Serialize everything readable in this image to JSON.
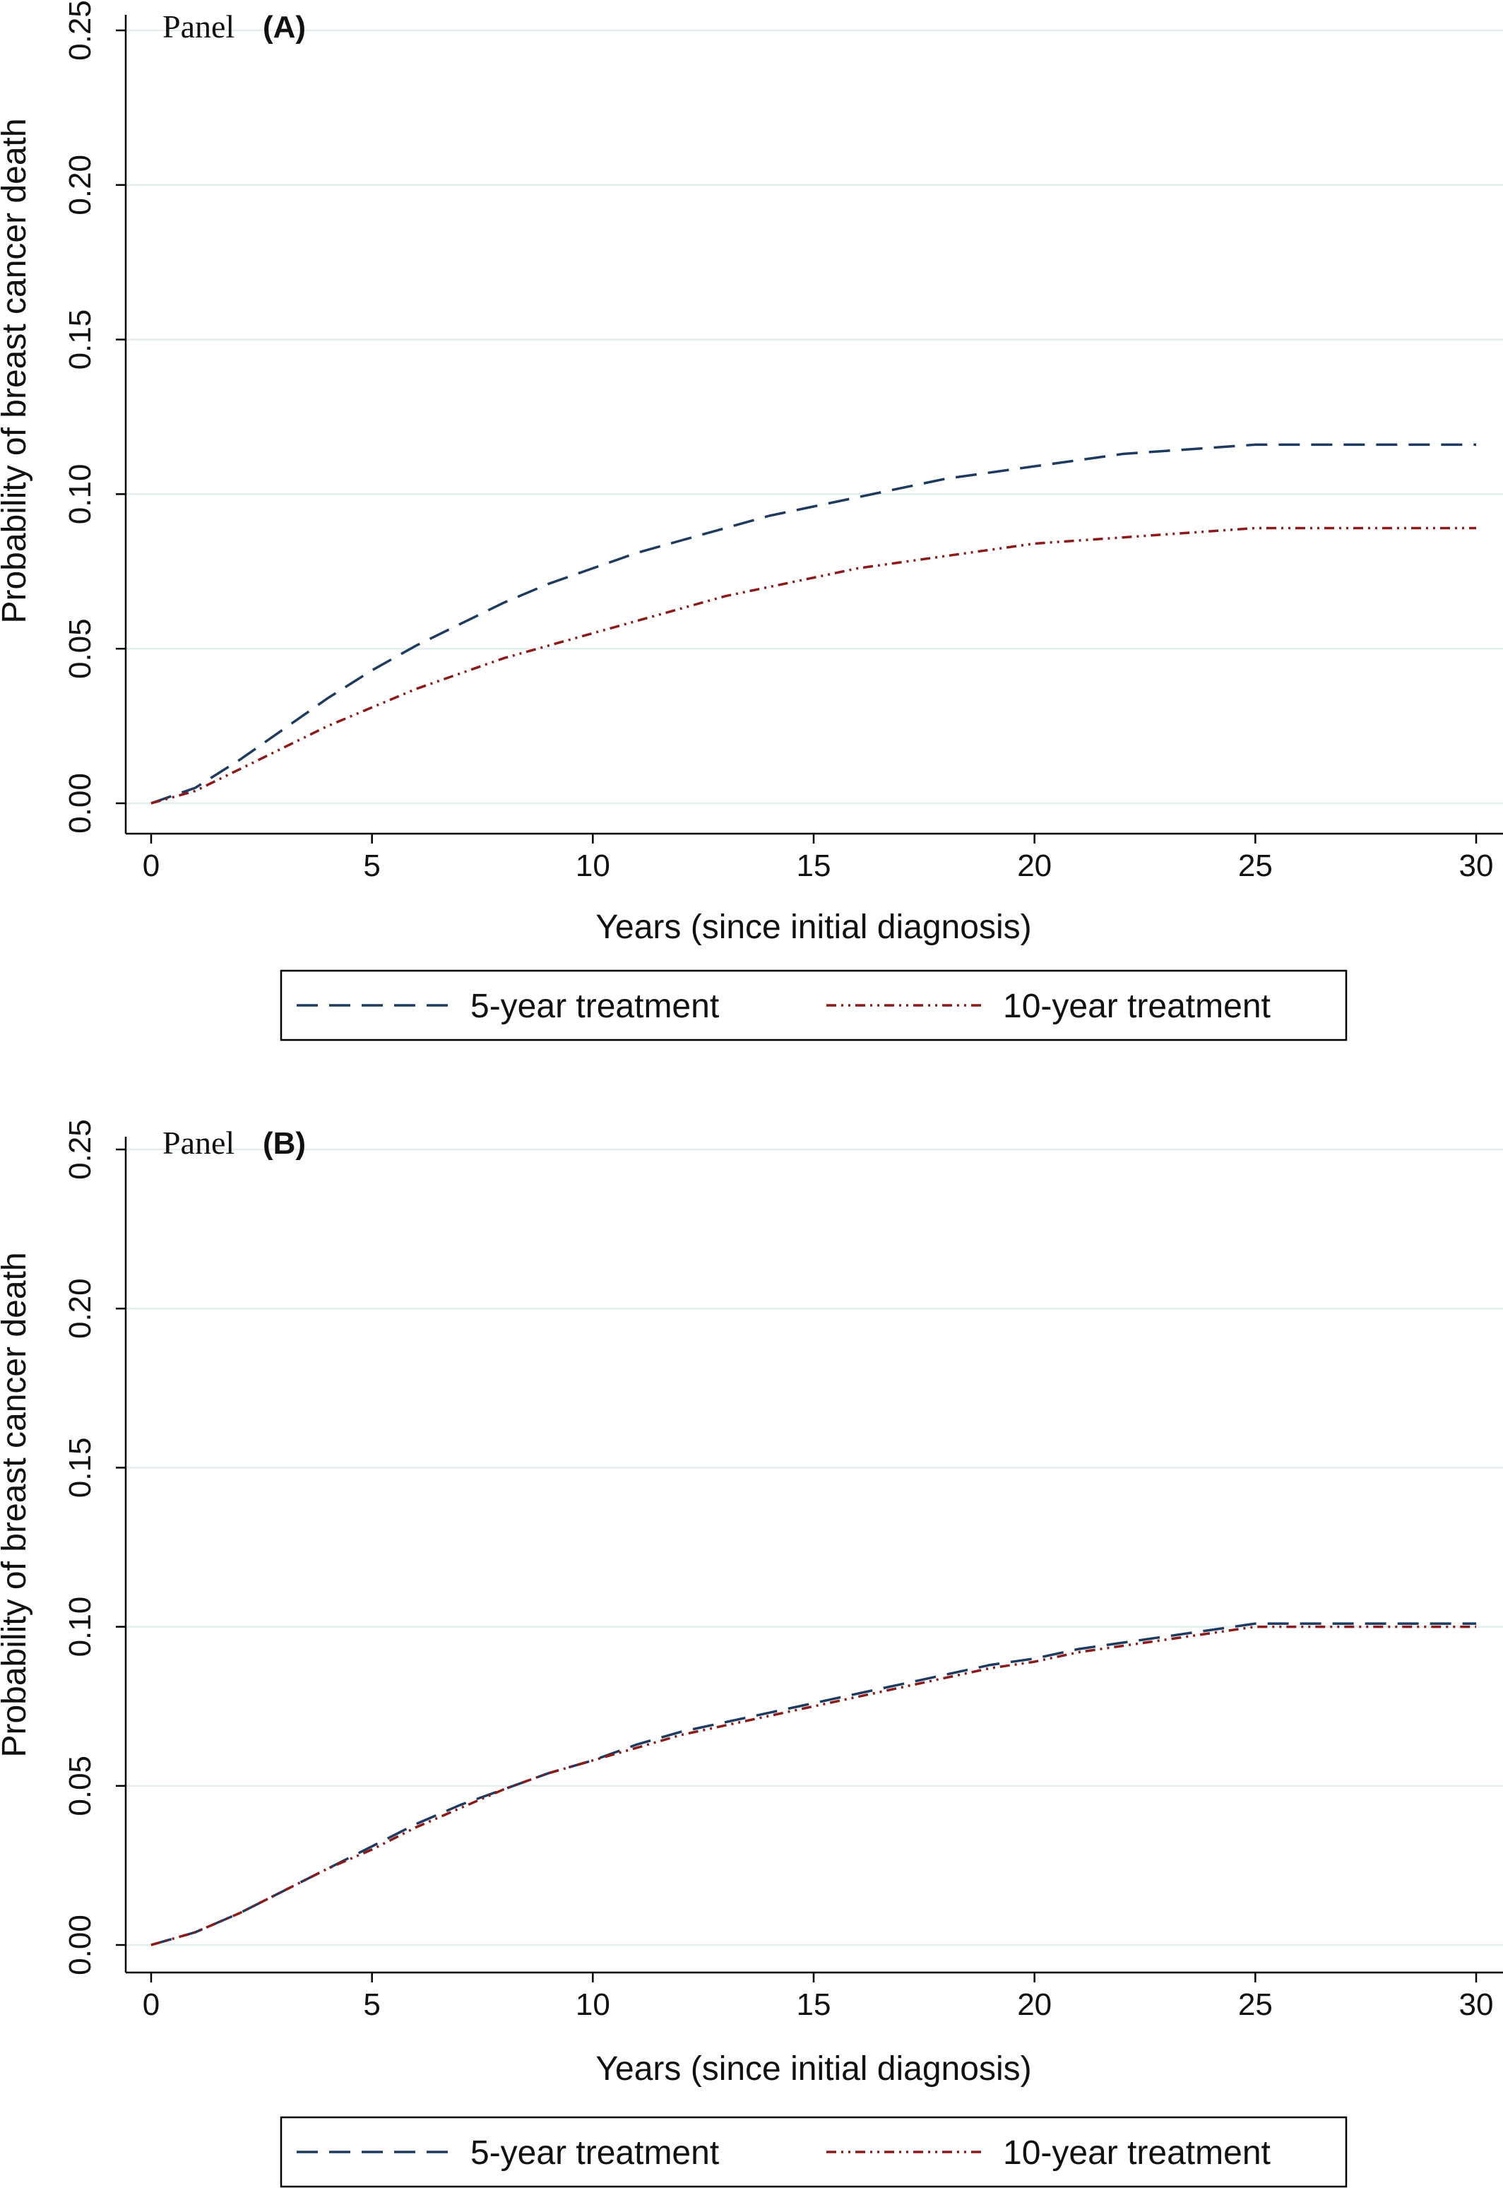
{
  "colors": {
    "series_5yr": "#1f3a5f",
    "series_10yr": "#8b1a1a",
    "grid": "#e3ecef",
    "axis": "#000000"
  },
  "chart_data": [
    {
      "type": "line",
      "panel_word": "Panel",
      "panel_letter": "(A)",
      "xlabel": "Years (since initial diagnosis)",
      "ylabel": "Probability of breast cancer death",
      "xlim": [
        0,
        30
      ],
      "ylim": [
        0,
        0.25
      ],
      "x_ticks": [
        "0",
        "5",
        "10",
        "15",
        "20",
        "25",
        "30"
      ],
      "y_ticks": [
        "0.00",
        "0.05",
        "0.10",
        "0.15",
        "0.20",
        "0.25"
      ],
      "grid": "horizontal",
      "legend_position": "bottom",
      "series": [
        {
          "name": "5-year treatment",
          "style": "dashed",
          "x": [
            0,
            1,
            2,
            3,
            4,
            5,
            6,
            7,
            8,
            9,
            10,
            11,
            12,
            13,
            14,
            15,
            16,
            17,
            18,
            19,
            20,
            21,
            22,
            23,
            24,
            25,
            26,
            27,
            28,
            29,
            30
          ],
          "y": [
            0,
            0.005,
            0.014,
            0.024,
            0.034,
            0.043,
            0.051,
            0.058,
            0.065,
            0.071,
            0.076,
            0.081,
            0.085,
            0.089,
            0.093,
            0.096,
            0.099,
            0.102,
            0.105,
            0.107,
            0.109,
            0.111,
            0.113,
            0.114,
            0.115,
            0.116,
            0.116,
            0.116,
            0.116,
            0.116,
            0.116
          ]
        },
        {
          "name": "10-year treatment",
          "style": "dash-dot",
          "x": [
            0,
            1,
            2,
            3,
            4,
            5,
            6,
            7,
            8,
            9,
            10,
            11,
            12,
            13,
            14,
            15,
            16,
            17,
            18,
            19,
            20,
            21,
            22,
            23,
            24,
            25,
            26,
            27,
            28,
            29,
            30
          ],
          "y": [
            0,
            0.004,
            0.011,
            0.018,
            0.025,
            0.031,
            0.037,
            0.042,
            0.047,
            0.051,
            0.055,
            0.059,
            0.063,
            0.067,
            0.07,
            0.073,
            0.076,
            0.078,
            0.08,
            0.082,
            0.084,
            0.085,
            0.086,
            0.087,
            0.088,
            0.089,
            0.089,
            0.089,
            0.089,
            0.089,
            0.089
          ]
        }
      ]
    },
    {
      "type": "line",
      "panel_word": "Panel",
      "panel_letter": "(B)",
      "xlabel": "Years (since initial diagnosis)",
      "ylabel": "Probability of breast cancer death",
      "xlim": [
        0,
        30
      ],
      "ylim": [
        0,
        0.25
      ],
      "x_ticks": [
        "0",
        "5",
        "10",
        "15",
        "20",
        "25",
        "30"
      ],
      "y_ticks": [
        "0.00",
        "0.05",
        "0.10",
        "0.15",
        "0.20",
        "0.25"
      ],
      "grid": "horizontal",
      "legend_position": "bottom",
      "series": [
        {
          "name": "5-year treatment",
          "style": "dashed",
          "x": [
            0,
            1,
            2,
            3,
            4,
            5,
            6,
            7,
            8,
            9,
            10,
            11,
            12,
            13,
            14,
            15,
            16,
            17,
            18,
            19,
            20,
            21,
            22,
            23,
            24,
            25,
            26,
            27,
            28,
            29,
            30
          ],
          "y": [
            0,
            0.004,
            0.01,
            0.017,
            0.024,
            0.031,
            0.038,
            0.044,
            0.049,
            0.054,
            0.058,
            0.063,
            0.067,
            0.07,
            0.073,
            0.076,
            0.079,
            0.082,
            0.085,
            0.088,
            0.09,
            0.093,
            0.095,
            0.097,
            0.099,
            0.101,
            0.101,
            0.101,
            0.101,
            0.101,
            0.101
          ]
        },
        {
          "name": "10-year treatment",
          "style": "dash-dot",
          "x": [
            0,
            1,
            2,
            3,
            4,
            5,
            6,
            7,
            8,
            9,
            10,
            11,
            12,
            13,
            14,
            15,
            16,
            17,
            18,
            19,
            20,
            21,
            22,
            23,
            24,
            25,
            26,
            27,
            28,
            29,
            30
          ],
          "y": [
            0,
            0.004,
            0.01,
            0.017,
            0.024,
            0.03,
            0.037,
            0.043,
            0.049,
            0.054,
            0.058,
            0.062,
            0.066,
            0.069,
            0.072,
            0.075,
            0.078,
            0.081,
            0.084,
            0.087,
            0.089,
            0.092,
            0.094,
            0.096,
            0.098,
            0.1,
            0.1,
            0.1,
            0.1,
            0.1,
            0.1
          ]
        }
      ]
    }
  ]
}
